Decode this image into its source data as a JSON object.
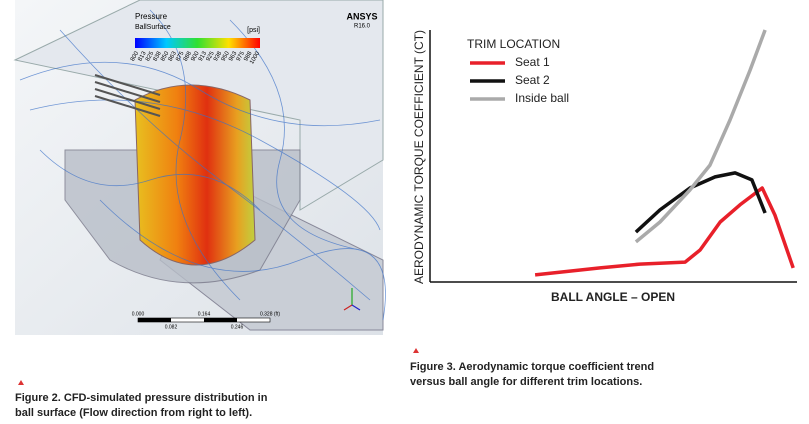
{
  "figure_2": {
    "image": {
      "legend_title": "Pressure",
      "legend_subtitle": "BallSurface",
      "legend_unit": "[psi]",
      "brand": "ANSYS",
      "version": "R16.0",
      "colorbar_labels": [
        "800",
        "813",
        "825",
        "838",
        "850",
        "863",
        "875",
        "888",
        "900",
        "913",
        "925",
        "938",
        "950",
        "963",
        "975",
        "988",
        "1000"
      ],
      "scale_labels_top": [
        "0.000",
        "0.164",
        "0.328 (ft)"
      ],
      "scale_labels_bottom": [
        "0.082",
        "0.246"
      ]
    },
    "caption_lines": [
      "Figure 2. CFD-simulated pressure distribution in",
      "ball surface (Flow direction from right to left)."
    ]
  },
  "figure_3": {
    "chart_data": {
      "type": "line",
      "y_label": "AERODYNAMIC TORQUE COEFFICIENT (CT)",
      "x_label": "BALL ANGLE – OPEN",
      "legend_title": "TRIM LOCATION",
      "xlim": [
        0,
        100
      ],
      "ylim": [
        0,
        100
      ],
      "series": [
        {
          "name": "Seat 1",
          "color": "#e8202a",
          "x": [
            28.8,
            46.6,
            57.5,
            69.9,
            74,
            79.5,
            84.9,
            91,
            94.5,
            99.5
          ],
          "values": [
            2.8,
            5.6,
            7.1,
            7.9,
            12.7,
            23.8,
            30.6,
            37.3,
            26.6,
            5.6
          ]
        },
        {
          "name": "Seat 2",
          "color": "#111111",
          "x": [
            56.4,
            63,
            71.2,
            78.1,
            83.6,
            88.2,
            91.8
          ],
          "values": [
            19.8,
            28.6,
            37.3,
            41.7,
            43.3,
            40.5,
            27.4
          ]
        },
        {
          "name": "Inside ball",
          "color": "#aaaaaa",
          "x": [
            56.4,
            63,
            71.2,
            76.7,
            82.2,
            87.7,
            91.8
          ],
          "values": [
            15.9,
            23.8,
            36.5,
            46.4,
            64.3,
            84.1,
            100
          ]
        }
      ]
    },
    "caption_lines": [
      "Figure 3. Aerodynamic torque coefficient trend",
      "versus ball angle for different trim locations."
    ]
  }
}
